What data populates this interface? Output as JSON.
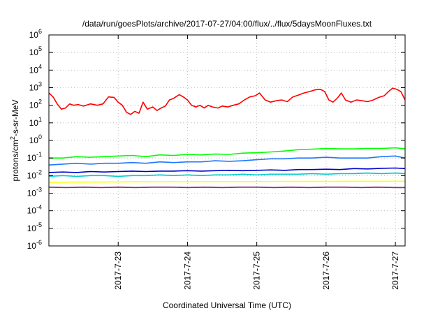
{
  "chart_data": {
    "type": "line",
    "title": "/data/run/goesPlots/archive/2017-07-27/04:00/flux/../flux/5daysMoonFluxes.txt",
    "xlabel": "Coordinated Universal Time (UTC)",
    "ylabel": {
      "prefix": "protons/cm",
      "sup": "2",
      "suffix": "-s-sr-MeV"
    },
    "yscale": "log",
    "ylim": [
      1e-06,
      1000000.0
    ],
    "xlim": [
      0,
      5.14
    ],
    "x_units": "days after 2017-7-22 00:00 UTC",
    "grid": true,
    "y_ticks": [
      {
        "value": -6,
        "mant": "10",
        "exp": "-6"
      },
      {
        "value": -5,
        "mant": "10",
        "exp": "-5"
      },
      {
        "value": -4,
        "mant": "10",
        "exp": "-4"
      },
      {
        "value": -3,
        "mant": "10",
        "exp": "-3"
      },
      {
        "value": -2,
        "mant": "10",
        "exp": "-2"
      },
      {
        "value": -1,
        "mant": "10",
        "exp": "-1"
      },
      {
        "value": 0,
        "mant": "10",
        "exp": "0"
      },
      {
        "value": 1,
        "mant": "10",
        "exp": "1"
      },
      {
        "value": 2,
        "mant": "10",
        "exp": "2"
      },
      {
        "value": 3,
        "mant": "10",
        "exp": "3"
      },
      {
        "value": 4,
        "mant": "10",
        "exp": "4"
      },
      {
        "value": 5,
        "mant": "10",
        "exp": "5"
      },
      {
        "value": 6,
        "mant": "10",
        "exp": "6"
      }
    ],
    "x_ticks": [
      {
        "value": 1,
        "label": "2017-7-23"
      },
      {
        "value": 2,
        "label": "2017-7-24"
      },
      {
        "value": 3,
        "label": "2017-7-25"
      },
      {
        "value": 4,
        "label": "2017-7-26"
      },
      {
        "value": 5,
        "label": "2017-7-27"
      }
    ],
    "series": [
      {
        "color": "#ff0000",
        "x": [
          0,
          0.06,
          0.12,
          0.18,
          0.24,
          0.3,
          0.36,
          0.42,
          0.5,
          0.6,
          0.7,
          0.78,
          0.86,
          0.94,
          1.0,
          1.06,
          1.12,
          1.18,
          1.24,
          1.3,
          1.36,
          1.42,
          1.5,
          1.56,
          1.62,
          1.68,
          1.74,
          1.8,
          1.88,
          1.94,
          2.0,
          2.06,
          2.12,
          2.18,
          2.24,
          2.3,
          2.36,
          2.44,
          2.5,
          2.58,
          2.66,
          2.74,
          2.82,
          2.9,
          2.98,
          3.04,
          3.12,
          3.2,
          3.28,
          3.36,
          3.44,
          3.52,
          3.6,
          3.68,
          3.76,
          3.84,
          3.92,
          3.98,
          4.04,
          4.1,
          4.16,
          4.22,
          4.28,
          4.36,
          4.44,
          4.52,
          4.6,
          4.68,
          4.76,
          4.84,
          4.9,
          4.96,
          5.02,
          5.08,
          5.14
        ],
        "values": [
          500,
          300,
          120,
          60,
          70,
          120,
          100,
          110,
          90,
          120,
          100,
          120,
          300,
          280,
          150,
          100,
          40,
          30,
          45,
          35,
          150,
          60,
          80,
          50,
          70,
          90,
          200,
          250,
          400,
          300,
          200,
          100,
          80,
          100,
          70,
          100,
          80,
          70,
          90,
          80,
          100,
          120,
          200,
          300,
          350,
          500,
          200,
          150,
          180,
          200,
          160,
          300,
          380,
          500,
          600,
          750,
          800,
          600,
          200,
          150,
          250,
          500,
          200,
          150,
          200,
          180,
          160,
          200,
          280,
          350,
          600,
          950,
          800,
          600,
          200
        ]
      },
      {
        "color": "#00ff00",
        "x": [
          0,
          0.2,
          0.4,
          0.6,
          0.8,
          1.0,
          1.2,
          1.4,
          1.6,
          1.8,
          2.0,
          2.2,
          2.4,
          2.6,
          2.8,
          3.0,
          3.2,
          3.4,
          3.6,
          3.8,
          4.0,
          4.2,
          4.4,
          4.6,
          4.8,
          5.0,
          5.14
        ],
        "values": [
          0.1,
          0.1,
          0.12,
          0.11,
          0.12,
          0.13,
          0.14,
          0.12,
          0.15,
          0.14,
          0.16,
          0.15,
          0.17,
          0.16,
          0.19,
          0.2,
          0.22,
          0.25,
          0.3,
          0.32,
          0.35,
          0.33,
          0.33,
          0.35,
          0.35,
          0.38,
          0.33
        ]
      },
      {
        "color": "#1f77ff",
        "x": [
          0,
          0.2,
          0.4,
          0.6,
          0.8,
          1.0,
          1.2,
          1.4,
          1.6,
          1.8,
          2.0,
          2.2,
          2.4,
          2.6,
          2.8,
          3.0,
          3.2,
          3.4,
          3.6,
          3.8,
          4.0,
          4.2,
          4.4,
          4.6,
          4.8,
          5.0,
          5.14
        ],
        "values": [
          0.04,
          0.045,
          0.05,
          0.045,
          0.05,
          0.05,
          0.055,
          0.05,
          0.06,
          0.055,
          0.06,
          0.06,
          0.07,
          0.065,
          0.07,
          0.08,
          0.09,
          0.09,
          0.1,
          0.1,
          0.11,
          0.1,
          0.1,
          0.1,
          0.12,
          0.13,
          0.1
        ]
      },
      {
        "color": "#0000cc",
        "x": [
          0,
          0.2,
          0.4,
          0.6,
          0.8,
          1.0,
          1.2,
          1.4,
          1.6,
          1.8,
          2.0,
          2.2,
          2.4,
          2.6,
          2.8,
          3.0,
          3.2,
          3.4,
          3.6,
          3.8,
          4.0,
          4.2,
          4.4,
          4.6,
          4.8,
          5.0,
          5.14
        ],
        "values": [
          0.015,
          0.016,
          0.015,
          0.017,
          0.016,
          0.017,
          0.018,
          0.017,
          0.018,
          0.018,
          0.019,
          0.018,
          0.019,
          0.02,
          0.019,
          0.02,
          0.021,
          0.02,
          0.022,
          0.022,
          0.023,
          0.022,
          0.025,
          0.024,
          0.026,
          0.027,
          0.025
        ]
      },
      {
        "color": "#00cccc",
        "x": [
          0,
          0.2,
          0.4,
          0.6,
          0.8,
          1.0,
          1.2,
          1.4,
          1.6,
          1.8,
          2.0,
          2.2,
          2.4,
          2.6,
          2.8,
          3.0,
          3.2,
          3.4,
          3.6,
          3.8,
          4.0,
          4.2,
          4.4,
          4.6,
          4.8,
          5.0,
          5.14
        ],
        "values": [
          0.009,
          0.01,
          0.009,
          0.01,
          0.01,
          0.009,
          0.01,
          0.01,
          0.011,
          0.01,
          0.011,
          0.01,
          0.011,
          0.011,
          0.012,
          0.011,
          0.012,
          0.012,
          0.012,
          0.013,
          0.012,
          0.013,
          0.013,
          0.014,
          0.013,
          0.014,
          0.013
        ]
      },
      {
        "color": "#ffff00",
        "x": [
          0,
          0.5,
          1.0,
          1.5,
          2.0,
          2.5,
          3.0,
          3.5,
          4.0,
          4.5,
          5.0,
          5.14
        ],
        "values": [
          0.0042,
          0.0043,
          0.0044,
          0.0045,
          0.0045,
          0.0046,
          0.0046,
          0.0047,
          0.0047,
          0.0048,
          0.0048,
          0.0048
        ]
      },
      {
        "color": "#8b2f7a",
        "x": [
          0,
          0.25,
          0.5,
          0.75,
          1.0,
          1.25,
          1.5,
          1.75,
          2.0,
          2.25,
          2.5,
          2.75,
          3.0,
          3.25,
          3.5,
          3.75,
          4.0,
          4.25,
          4.5,
          4.75,
          5.0,
          5.14
        ],
        "values": [
          0.0022,
          0.0021,
          0.0022,
          0.0021,
          0.0022,
          0.0021,
          0.0022,
          0.0022,
          0.0021,
          0.0022,
          0.0021,
          0.0022,
          0.0022,
          0.0021,
          0.0022,
          0.0021,
          0.0022,
          0.0022,
          0.0021,
          0.0022,
          0.0021,
          0.0021
        ]
      }
    ]
  }
}
